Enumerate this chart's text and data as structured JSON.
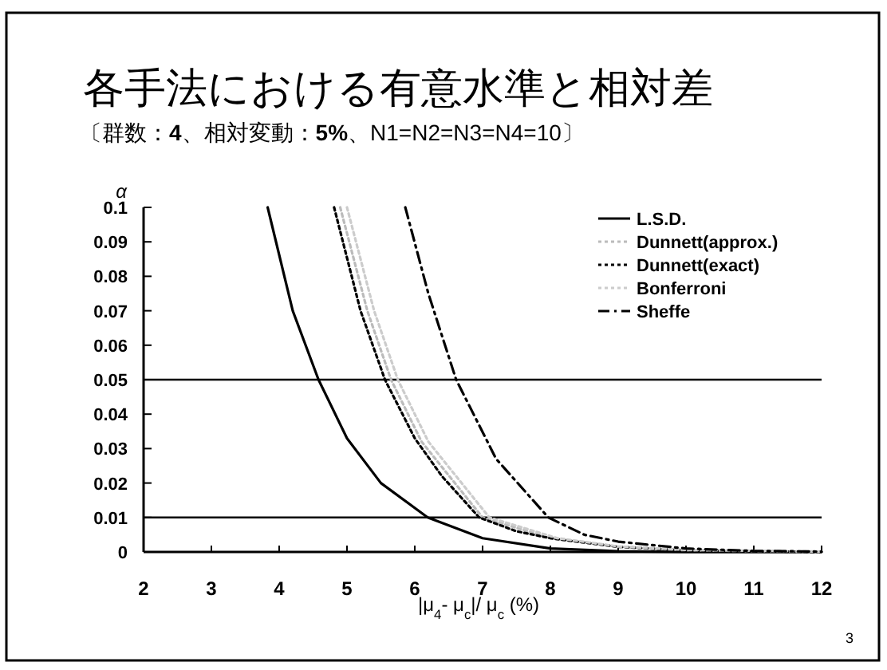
{
  "chart_data": {
    "type": "line",
    "title": "各手法における有意水準と相対差",
    "subtitle": "〔群数：**4**、相対変動：**5%**、N1=N2=N3=N4=10〕",
    "xlabel": "|μ$_{4}$- μ$_{c}$|/ μ$_{c}$ (%)",
    "ylabel": "α",
    "xlim": [
      2,
      12
    ],
    "xticks": [
      2,
      3,
      4,
      5,
      6,
      7,
      8,
      9,
      10,
      11,
      12
    ],
    "ylim": [
      0,
      0.1
    ],
    "yticks": [
      0,
      0.01,
      0.02,
      0.03,
      0.04,
      0.05,
      0.06,
      0.07,
      0.08,
      0.09,
      0.1
    ],
    "grid": false,
    "legend": "top right",
    "marker": "none",
    "ref_lines": [
      {
        "axis": "y",
        "value": 0.05,
        "color": "#000000"
      },
      {
        "axis": "y",
        "value": 0.01,
        "color": "#000000"
      }
    ],
    "annotations": [
      "3"
    ],
    "series": [
      {
        "name": "L.S.D.",
        "color": "#000000",
        "line_style": "solid",
        "x": [
          3.83,
          4.2,
          4.58,
          5,
          5.5,
          6.19,
          7,
          8,
          9,
          10,
          12
        ],
        "values": [
          0.1,
          0.07,
          0.05,
          0.033,
          0.02,
          0.01,
          0.004,
          0.001,
          0.0002,
          0,
          0
        ]
      },
      {
        "name": "Dunnett(approx.)",
        "color": "#bbbbbb",
        "line_style": "dotted",
        "x": [
          4.9,
          5.3,
          5.65,
          6.1,
          7,
          8,
          9,
          10,
          12
        ],
        "values": [
          0.1,
          0.07,
          0.05,
          0.032,
          0.01,
          0.004,
          0.0015,
          0.0005,
          0
        ]
      },
      {
        "name": "Dunnett(exact)",
        "color": "#000000",
        "line_style": "dotted",
        "x": [
          4.81,
          5.2,
          5.56,
          6,
          6.4,
          6.95,
          7.5,
          8,
          9,
          10,
          11,
          12
        ],
        "values": [
          0.1,
          0.07,
          0.05,
          0.033,
          0.022,
          0.01,
          0.006,
          0.004,
          0.0015,
          0.0005,
          0.0002,
          0
        ]
      },
      {
        "name": "Bonferroni",
        "color": "#cccccc",
        "line_style": "dotted",
        "x": [
          5,
          5.4,
          5.75,
          6.2,
          7.1,
          8.1,
          9,
          10,
          12
        ],
        "values": [
          0.1,
          0.07,
          0.05,
          0.032,
          0.01,
          0.004,
          0.0016,
          0.0006,
          0.0001
        ]
      },
      {
        "name": "Sheffe",
        "color": "#000000",
        "line_style": "dashed",
        "x": [
          5.86,
          6.2,
          6.61,
          7.2,
          7.97,
          8.5,
          9,
          10,
          11,
          12
        ],
        "values": [
          0.1,
          0.075,
          0.05,
          0.027,
          0.01,
          0.005,
          0.003,
          0.001,
          0.0003,
          0.0001
        ]
      }
    ]
  }
}
